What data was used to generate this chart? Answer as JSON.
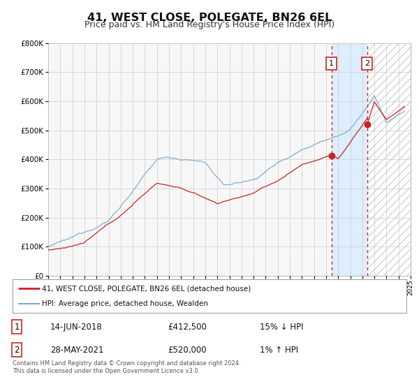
{
  "title": "41, WEST CLOSE, POLEGATE, BN26 6EL",
  "subtitle": "Price paid vs. HM Land Registry's House Price Index (HPI)",
  "title_fontsize": 11.5,
  "subtitle_fontsize": 9,
  "red_line_label": "41, WEST CLOSE, POLEGATE, BN26 6EL (detached house)",
  "blue_line_label": "HPI: Average price, detached house, Wealden",
  "red_color": "#cc2222",
  "blue_color": "#7aaad0",
  "marker_color": "#cc2222",
  "point1_x": 2018.45,
  "point1_y": 412500,
  "point2_x": 2021.41,
  "point2_y": 520000,
  "vline1_x": 2018.45,
  "vline2_x": 2021.41,
  "annotation1_date": "14-JUN-2018",
  "annotation1_price": "£412,500",
  "annotation1_hpi": "15% ↓ HPI",
  "annotation2_date": "28-MAY-2021",
  "annotation2_price": "£520,000",
  "annotation2_hpi": "1% ↑ HPI",
  "footer": "Contains HM Land Registry data © Crown copyright and database right 2024.\nThis data is licensed under the Open Government Licence v3.0.",
  "ylim": [
    0,
    800000
  ],
  "xlim_start": 1995,
  "xlim_end": 2025,
  "background_color": "#ffffff",
  "plot_bg_color": "#f7f7f7",
  "shaded_region_color": "#ddeeff",
  "grid_color": "#cccccc"
}
